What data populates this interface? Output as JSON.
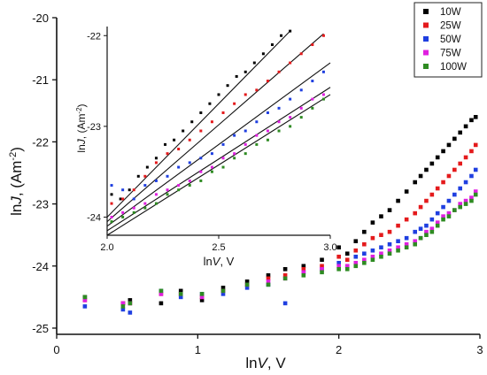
{
  "chart_data": [
    {
      "type": "scatter",
      "panel": "main",
      "xlabel_main": "ln",
      "xlabel_italic": "V",
      "xlabel_unit": ", V",
      "ylabel_main": "ln",
      "ylabel_italic": "J",
      "ylabel_unit": ", (Am",
      "ylabel_sup": "-2",
      "ylabel_close": ")",
      "xlim": [
        0,
        3
      ],
      "ylim": [
        -25.1,
        -20
      ],
      "x_ticks": [
        "0",
        "1",
        "2",
        "3"
      ],
      "y_ticks": [
        "-20",
        "-21",
        "-22",
        "-23",
        "-24",
        "-25"
      ],
      "series": [
        {
          "name": "10W",
          "color": "#000000",
          "x": [
            0.2,
            0.47,
            0.52,
            0.74,
            0.88,
            1.03,
            1.18,
            1.35,
            1.5,
            1.62,
            1.75,
            1.88,
            2.0,
            2.06,
            2.12,
            2.18,
            2.24,
            2.3,
            2.36,
            2.42,
            2.48,
            2.54,
            2.58,
            2.62,
            2.66,
            2.7,
            2.74,
            2.78,
            2.82,
            2.86,
            2.9,
            2.94,
            2.97
          ],
          "y": [
            -24.5,
            -24.6,
            -24.55,
            -24.6,
            -24.4,
            -24.55,
            -24.35,
            -24.25,
            -24.15,
            -24.05,
            -24.0,
            -23.9,
            -23.7,
            -23.8,
            -23.6,
            -23.45,
            -23.3,
            -23.2,
            -23.1,
            -22.95,
            -22.8,
            -22.65,
            -22.55,
            -22.45,
            -22.35,
            -22.25,
            -22.15,
            -22.05,
            -21.95,
            -21.85,
            -21.75,
            -21.65,
            -21.6
          ]
        },
        {
          "name": "25W",
          "color": "#e41a1c",
          "x": [
            0.2,
            0.47,
            0.52,
            0.74,
            0.88,
            1.03,
            1.18,
            1.35,
            1.5,
            1.62,
            1.75,
            1.88,
            2.0,
            2.06,
            2.12,
            2.18,
            2.24,
            2.3,
            2.36,
            2.42,
            2.48,
            2.54,
            2.58,
            2.62,
            2.66,
            2.7,
            2.74,
            2.78,
            2.82,
            2.86,
            2.9,
            2.94,
            2.97
          ],
          "y": [
            -24.55,
            -24.6,
            -24.6,
            -24.45,
            -24.45,
            -24.5,
            -24.4,
            -24.3,
            -24.2,
            -24.15,
            -24.05,
            -24.0,
            -23.85,
            -23.9,
            -23.75,
            -23.65,
            -23.55,
            -23.5,
            -23.45,
            -23.35,
            -23.25,
            -23.15,
            -23.05,
            -22.95,
            -22.85,
            -22.75,
            -22.65,
            -22.55,
            -22.45,
            -22.35,
            -22.25,
            -22.15,
            -22.05
          ]
        },
        {
          "name": "50W",
          "color": "#1f3fe0",
          "x": [
            0.2,
            0.47,
            0.52,
            0.74,
            0.88,
            1.03,
            1.18,
            1.35,
            1.5,
            1.62,
            1.75,
            1.88,
            2.0,
            2.06,
            2.12,
            2.18,
            2.24,
            2.3,
            2.36,
            2.42,
            2.48,
            2.54,
            2.58,
            2.62,
            2.66,
            2.7,
            2.74,
            2.78,
            2.82,
            2.86,
            2.9,
            2.94,
            2.97
          ],
          "y": [
            -24.65,
            -24.7,
            -24.75,
            -24.4,
            -24.5,
            -24.45,
            -24.45,
            -24.35,
            -24.3,
            -24.6,
            -24.1,
            -24.05,
            -23.95,
            -24.0,
            -23.85,
            -23.8,
            -23.75,
            -23.7,
            -23.65,
            -23.6,
            -23.55,
            -23.45,
            -23.4,
            -23.35,
            -23.25,
            -23.15,
            -23.05,
            -22.95,
            -22.85,
            -22.75,
            -22.65,
            -22.55,
            -22.45
          ]
        },
        {
          "name": "75W",
          "color": "#e01fe0",
          "x": [
            0.2,
            0.47,
            0.52,
            0.74,
            0.88,
            1.03,
            1.18,
            1.35,
            1.5,
            1.62,
            1.75,
            1.88,
            2.0,
            2.06,
            2.12,
            2.18,
            2.24,
            2.3,
            2.36,
            2.42,
            2.48,
            2.54,
            2.58,
            2.62,
            2.66,
            2.7,
            2.74,
            2.78,
            2.82,
            2.86,
            2.9,
            2.94,
            2.97
          ],
          "y": [
            -24.55,
            -24.6,
            -24.6,
            -24.45,
            -24.45,
            -24.5,
            -24.4,
            -24.3,
            -24.25,
            -24.2,
            -24.1,
            -24.05,
            -24.0,
            -24.0,
            -23.95,
            -23.9,
            -23.85,
            -23.8,
            -23.75,
            -23.7,
            -23.65,
            -23.6,
            -23.55,
            -23.45,
            -23.4,
            -23.3,
            -23.2,
            -23.15,
            -23.1,
            -23.0,
            -22.95,
            -22.9,
            -22.8
          ]
        },
        {
          "name": "100W",
          "color": "#2e8b22",
          "x": [
            0.2,
            0.47,
            0.52,
            0.74,
            0.88,
            1.03,
            1.18,
            1.35,
            1.5,
            1.62,
            1.75,
            1.88,
            2.0,
            2.06,
            2.12,
            2.18,
            2.24,
            2.3,
            2.36,
            2.42,
            2.48,
            2.54,
            2.58,
            2.62,
            2.66,
            2.7,
            2.74,
            2.78,
            2.82,
            2.86,
            2.9,
            2.94,
            2.97
          ],
          "y": [
            -24.5,
            -24.65,
            -24.6,
            -24.4,
            -24.45,
            -24.45,
            -24.4,
            -24.3,
            -24.3,
            -24.2,
            -24.15,
            -24.1,
            -24.05,
            -24.05,
            -24.0,
            -23.95,
            -23.9,
            -23.85,
            -23.8,
            -23.75,
            -23.7,
            -23.65,
            -23.55,
            -23.5,
            -23.45,
            -23.35,
            -23.25,
            -23.2,
            -23.1,
            -23.05,
            -23.0,
            -22.95,
            -22.85
          ]
        }
      ],
      "legend": {
        "placement": "top-right",
        "entries": [
          "10W",
          "25W",
          "50W",
          "75W",
          "100W"
        ]
      }
    },
    {
      "type": "scatter",
      "panel": "inset",
      "xlabel_main": "ln",
      "xlabel_italic": "V",
      "xlabel_unit": ", V",
      "ylabel_main": "ln",
      "ylabel_italic": "J",
      "ylabel_unit": ", (Am",
      "ylabel_sup": "-2",
      "ylabel_close": ")",
      "xlim": [
        2.0,
        3.0
      ],
      "ylim": [
        -24.2,
        -21.9
      ],
      "x_ticks": [
        "2.0",
        "2.5",
        "3.0"
      ],
      "y_ticks": [
        "-22",
        "-23",
        "-24"
      ],
      "fit_lines": [
        {
          "series": "10W",
          "x": [
            2.0,
            2.82
          ],
          "y": [
            -24.0,
            -21.95
          ]
        },
        {
          "series": "25W",
          "x": [
            2.0,
            2.97
          ],
          "y": [
            -24.05,
            -21.98
          ]
        },
        {
          "series": "50W",
          "x": [
            2.0,
            3.0
          ],
          "y": [
            -24.1,
            -22.3
          ]
        },
        {
          "series": "75W",
          "x": [
            2.0,
            3.0
          ],
          "y": [
            -24.15,
            -22.57
          ]
        },
        {
          "series": "100W",
          "x": [
            2.0,
            3.0
          ],
          "y": [
            -24.2,
            -22.65
          ]
        }
      ],
      "series": [
        {
          "name": "10W",
          "color": "#000000",
          "x": [
            2.02,
            2.06,
            2.1,
            2.14,
            2.18,
            2.22,
            2.26,
            2.3,
            2.34,
            2.38,
            2.42,
            2.46,
            2.5,
            2.54,
            2.58,
            2.62,
            2.66,
            2.7,
            2.74,
            2.78,
            2.82
          ],
          "y": [
            -23.75,
            -23.8,
            -23.7,
            -23.55,
            -23.45,
            -23.35,
            -23.2,
            -23.15,
            -23.05,
            -22.95,
            -22.85,
            -22.75,
            -22.65,
            -22.55,
            -22.45,
            -22.4,
            -22.3,
            -22.2,
            -22.1,
            -22.0,
            -21.95
          ]
        },
        {
          "name": "25W",
          "color": "#e41a1c",
          "x": [
            2.02,
            2.07,
            2.12,
            2.17,
            2.22,
            2.27,
            2.32,
            2.37,
            2.42,
            2.47,
            2.52,
            2.57,
            2.62,
            2.67,
            2.72,
            2.77,
            2.82,
            2.87,
            2.92,
            2.97
          ],
          "y": [
            -23.85,
            -23.8,
            -23.7,
            -23.55,
            -23.4,
            -23.3,
            -23.25,
            -23.15,
            -23.05,
            -22.95,
            -22.85,
            -22.75,
            -22.65,
            -22.6,
            -22.5,
            -22.4,
            -22.3,
            -22.2,
            -22.1,
            -22.0
          ]
        },
        {
          "name": "50W",
          "color": "#1f3fe0",
          "x": [
            2.02,
            2.07,
            2.12,
            2.17,
            2.22,
            2.27,
            2.32,
            2.37,
            2.42,
            2.47,
            2.52,
            2.57,
            2.62,
            2.67,
            2.72,
            2.77,
            2.82,
            2.87,
            2.92,
            2.97
          ],
          "y": [
            -23.65,
            -23.7,
            -23.8,
            -23.65,
            -23.6,
            -23.55,
            -23.45,
            -23.4,
            -23.35,
            -23.3,
            -23.2,
            -23.1,
            -23.05,
            -22.95,
            -22.85,
            -22.8,
            -22.7,
            -22.6,
            -22.5,
            -22.4
          ]
        },
        {
          "name": "75W",
          "color": "#e01fe0",
          "x": [
            2.02,
            2.07,
            2.12,
            2.17,
            2.22,
            2.27,
            2.32,
            2.37,
            2.42,
            2.47,
            2.52,
            2.57,
            2.62,
            2.67,
            2.72,
            2.77,
            2.82,
            2.87,
            2.92,
            2.97
          ],
          "y": [
            -24.0,
            -23.95,
            -23.9,
            -23.85,
            -23.75,
            -23.7,
            -23.65,
            -23.6,
            -23.5,
            -23.45,
            -23.35,
            -23.3,
            -23.2,
            -23.1,
            -23.05,
            -22.95,
            -22.9,
            -22.8,
            -22.7,
            -22.65
          ]
        },
        {
          "name": "100W",
          "color": "#2e8b22",
          "x": [
            2.02,
            2.07,
            2.12,
            2.17,
            2.22,
            2.27,
            2.32,
            2.37,
            2.42,
            2.47,
            2.52,
            2.57,
            2.62,
            2.67,
            2.72,
            2.77,
            2.82,
            2.87,
            2.92,
            2.97
          ],
          "y": [
            -24.05,
            -24.0,
            -23.95,
            -23.9,
            -23.85,
            -23.75,
            -23.7,
            -23.65,
            -23.6,
            -23.5,
            -23.45,
            -23.35,
            -23.3,
            -23.2,
            -23.15,
            -23.05,
            -23.0,
            -22.9,
            -22.8,
            -22.7
          ]
        }
      ]
    }
  ]
}
